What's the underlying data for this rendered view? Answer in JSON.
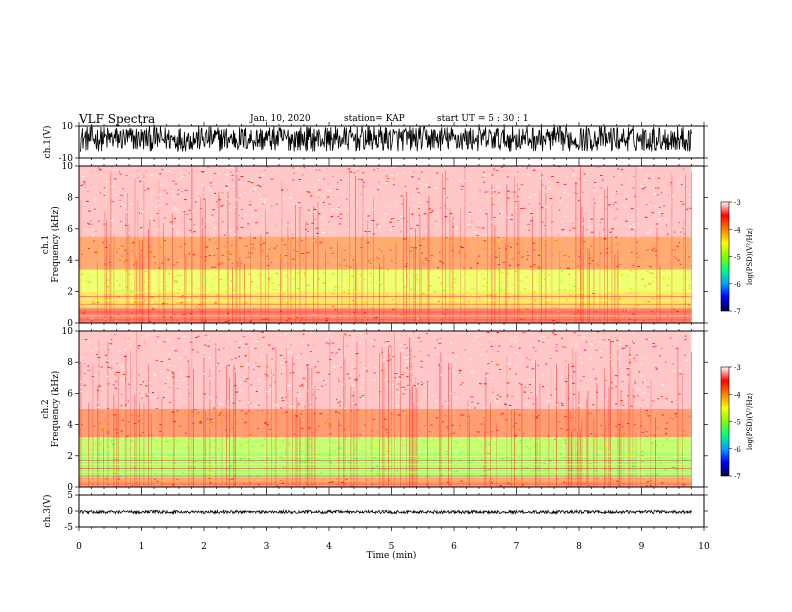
{
  "header": {
    "title": "VLF Spectra",
    "date": "Jan. 10, 2020",
    "station": "station= KAP",
    "start_ut": "start UT =  5 : 30 : 1"
  },
  "chart_data": [
    {
      "type": "line",
      "panel": "waveform-ch1",
      "ylabel": "ch.1(V)",
      "ylim": [
        -10,
        10
      ],
      "yticks": [
        "10",
        "-10"
      ],
      "xlim": [
        0,
        10
      ],
      "data_extent_min": 9.8,
      "description": "dense oscillating waveform between about -6 and 10 V",
      "values_range": [
        -6,
        10
      ]
    },
    {
      "type": "heatmap",
      "panel": "spectrogram-ch1",
      "ylabel": "ch.1 Frequency (kHz)",
      "ylim": [
        0,
        10
      ],
      "yticks": [
        "0",
        "2",
        "4",
        "6",
        "8",
        "10"
      ],
      "xlim": [
        0,
        10
      ],
      "data_extent_min": 9.8,
      "bands": [
        {
          "from_khz": 0,
          "to_khz": 1,
          "level": -3.6
        },
        {
          "from_khz": 1,
          "to_khz": 2,
          "level": -4.3
        },
        {
          "from_khz": 2,
          "to_khz": 3.4,
          "level": -4.6
        },
        {
          "from_khz": 3.4,
          "to_khz": 5.5,
          "level": -3.9
        },
        {
          "from_khz": 5.5,
          "to_khz": 10,
          "level": -3.2
        }
      ]
    },
    {
      "type": "heatmap",
      "panel": "spectrogram-ch2",
      "ylabel": "ch.2 Frequency (kHz)",
      "ylim": [
        0,
        10
      ],
      "yticks": [
        "0",
        "2",
        "4",
        "6",
        "8",
        "10"
      ],
      "xlim": [
        0,
        10
      ],
      "data_extent_min": 9.8,
      "bands": [
        {
          "from_khz": 0,
          "to_khz": 0.6,
          "level": -3.8
        },
        {
          "from_khz": 0.6,
          "to_khz": 2.2,
          "level": -5.1
        },
        {
          "from_khz": 2.2,
          "to_khz": 3.2,
          "level": -4.9
        },
        {
          "from_khz": 3.2,
          "to_khz": 5,
          "level": -3.8
        },
        {
          "from_khz": 5,
          "to_khz": 10,
          "level": -3.2
        }
      ]
    },
    {
      "type": "line",
      "panel": "waveform-ch3",
      "ylabel": "ch.3(V)",
      "ylim": [
        -5,
        5
      ],
      "yticks": [
        "5",
        "0",
        "-5"
      ],
      "xlim": [
        0,
        10
      ],
      "data_extent_min": 9.8,
      "description": "nearly flat dense band around 0 V",
      "values_range": [
        -0.8,
        0.2
      ]
    }
  ],
  "xaxis": {
    "label": "Time (min)",
    "ticks": [
      "0",
      "1",
      "2",
      "3",
      "4",
      "5",
      "6",
      "7",
      "8",
      "9",
      "10"
    ]
  },
  "colorbar": {
    "label": "log(PSD)(V²/Hz)",
    "min": -7,
    "max": -3,
    "ticks": [
      "-3",
      "-4",
      "-5",
      "-6",
      "-7"
    ],
    "colors": [
      "#000040",
      "#0000ff",
      "#00a0ff",
      "#00ff80",
      "#80ff00",
      "#ffff00",
      "#ff8000",
      "#ff0000",
      "#ffffff"
    ]
  }
}
